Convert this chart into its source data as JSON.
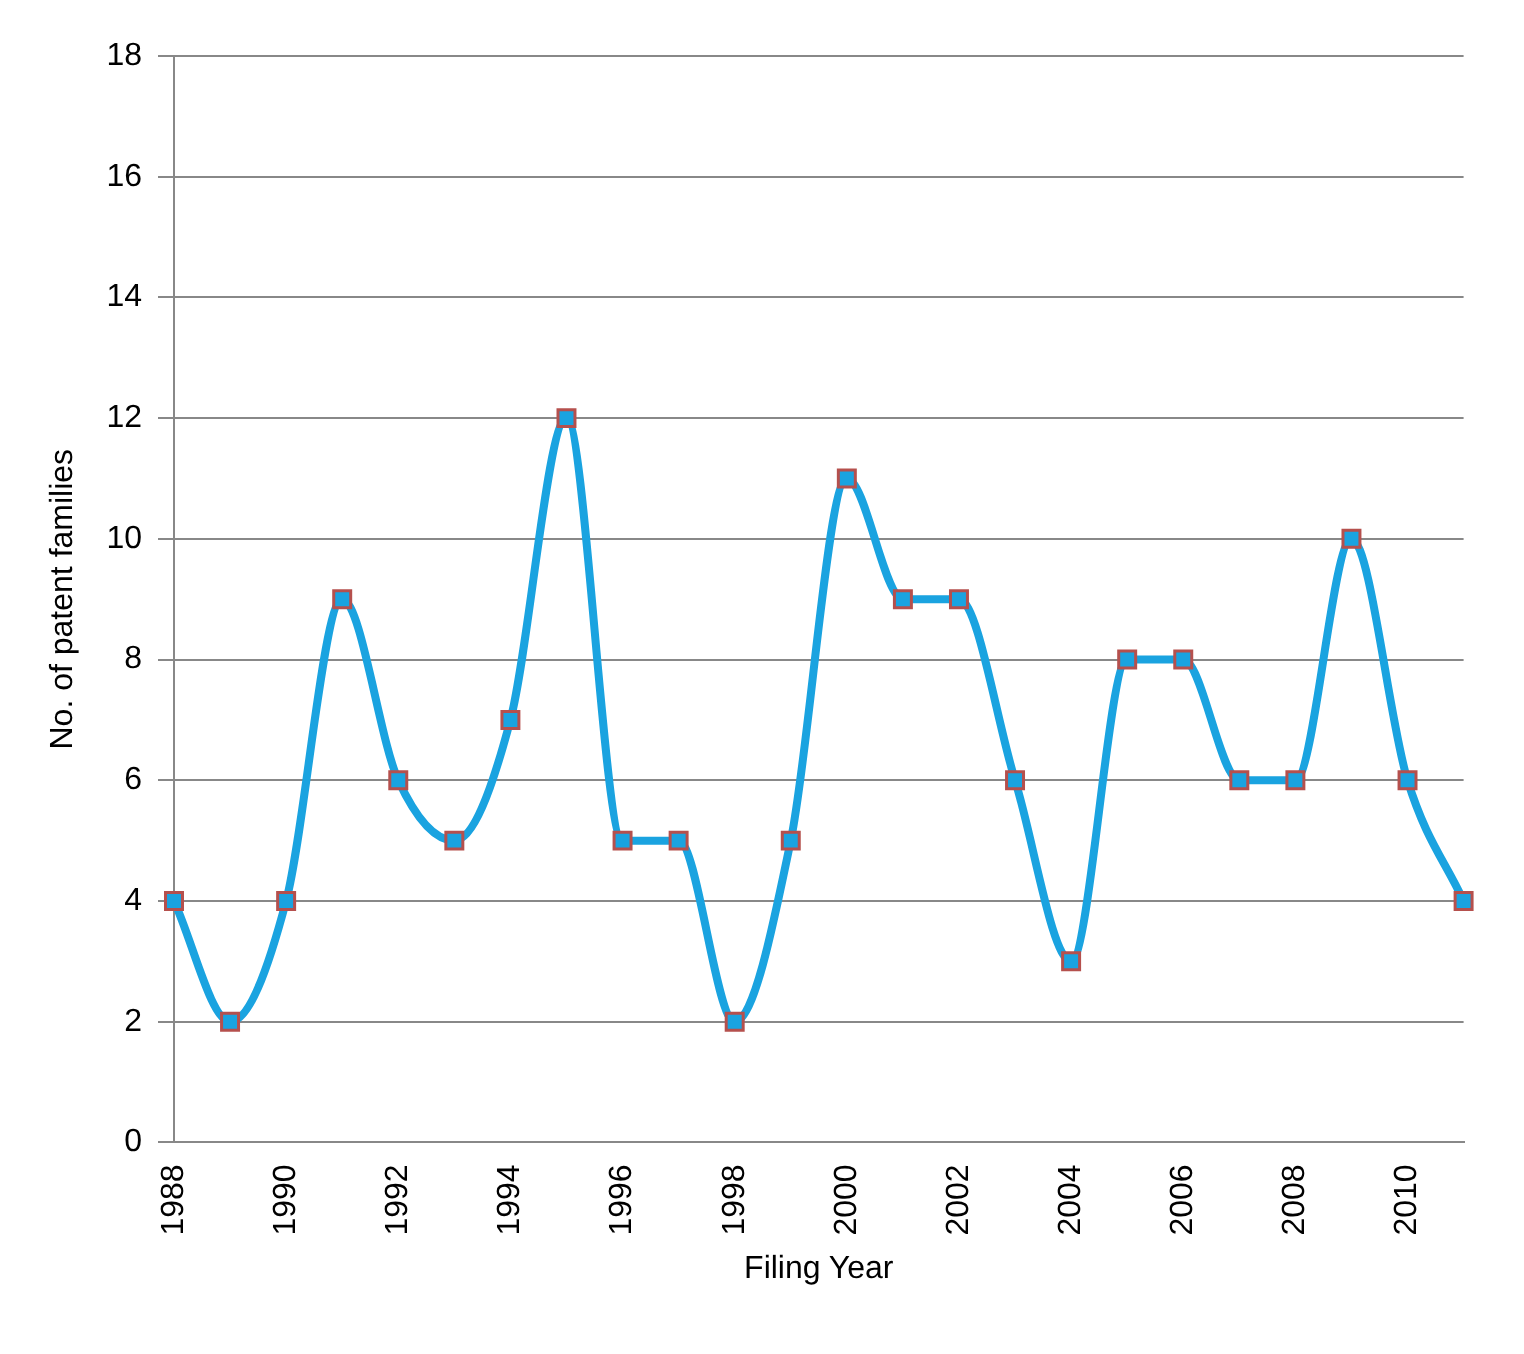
{
  "chart_data": {
    "type": "line",
    "xlabel": "Filing Year",
    "ylabel": "No. of patent families",
    "categories": [
      "1988",
      null,
      "1990",
      null,
      "1992",
      null,
      "1994",
      null,
      "1996",
      null,
      "1998",
      null,
      "2000",
      null,
      "2002",
      null,
      "2004",
      null,
      "2006",
      null,
      "2008",
      null,
      "2010",
      null
    ],
    "series": [
      {
        "color": "#1aa3e0",
        "values": [
          4,
          2,
          4,
          9,
          6,
          5,
          7,
          12,
          5,
          5,
          2,
          5,
          11,
          9,
          9,
          6,
          3,
          8,
          8,
          6,
          6,
          10,
          6,
          4
        ]
      }
    ],
    "ylim": [
      0,
      18
    ],
    "yticks": [
      0,
      2,
      4,
      6,
      8,
      10,
      12,
      14,
      16,
      18
    ],
    "grid": "y",
    "legend": false,
    "marker": "square",
    "line_style": "solid"
  }
}
